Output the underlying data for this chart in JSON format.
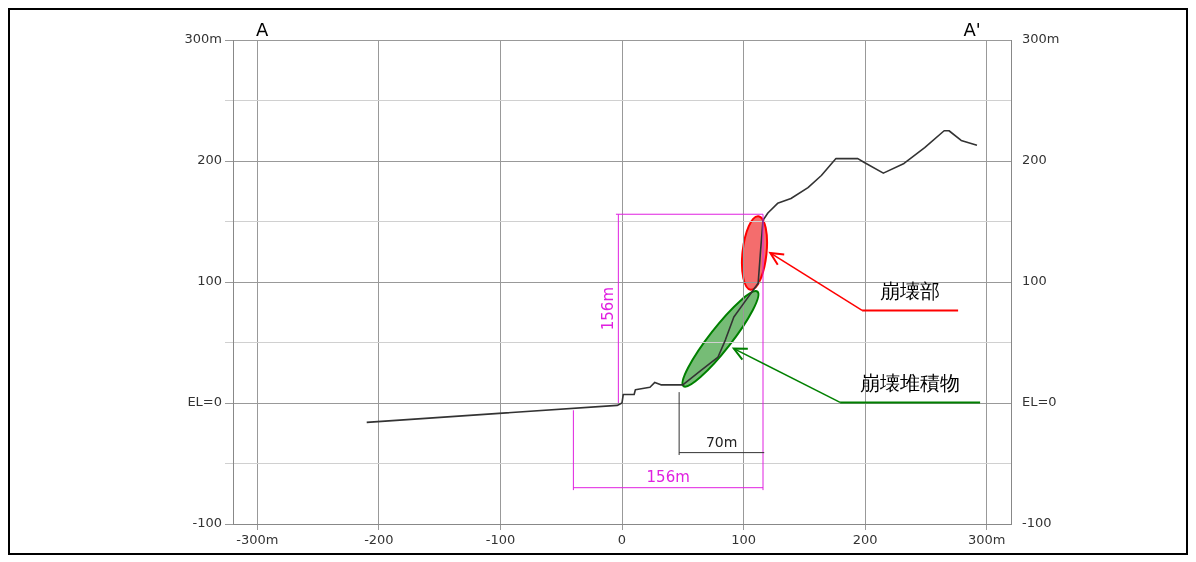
{
  "chart_data": {
    "type": "line",
    "x": [
      -210,
      -4,
      0,
      1,
      10,
      11,
      23,
      27,
      32,
      48,
      50,
      65,
      79,
      85,
      92,
      102,
      112,
      114,
      116,
      120,
      128,
      139,
      153,
      164,
      176,
      194,
      199,
      215,
      232,
      249,
      265,
      269,
      279,
      292
    ],
    "series": [
      {
        "color": "#333333",
        "values": [
          -16,
          -2,
          0,
          7,
          7,
          11,
          13,
          17,
          15,
          15,
          15,
          27,
          38,
          52,
          71,
          85,
          99,
          126,
          151,
          157,
          165,
          169,
          178,
          188,
          202,
          202,
          199,
          190,
          198,
          211,
          225,
          225,
          217,
          213
        ]
      }
    ],
    "xlim": [
      -320,
      320
    ],
    "ylim": [
      -100,
      300
    ],
    "xticks": [
      {
        "value": -300,
        "label": "-300m"
      },
      -200,
      -100,
      0,
      100,
      200,
      {
        "value": 300,
        "label": "300m"
      }
    ],
    "yticks": [
      {
        "value": -100,
        "label": "-100"
      },
      {
        "value": -50,
        "label": null
      },
      {
        "value": 0,
        "label": "EL=0"
      },
      {
        "value": 50,
        "label": null
      },
      100,
      {
        "value": 150,
        "label": null
      },
      200,
      {
        "value": 250,
        "label": null
      },
      {
        "value": 300,
        "label": "300m"
      }
    ],
    "y2lim": [
      -100,
      300
    ],
    "y2ticks": [
      {
        "value": -100,
        "label": "-100"
      },
      {
        "value": -50,
        "label": null
      },
      {
        "value": 0,
        "label": "EL=0"
      },
      {
        "value": 50,
        "label": null
      },
      100,
      {
        "value": 150,
        "label": null
      },
      200,
      {
        "value": 250,
        "label": null
      },
      {
        "value": 300,
        "label": "300m"
      }
    ],
    "grid": true,
    "legend": false,
    "marker": "none",
    "line_style": "solid",
    "annotations": [
      "156m",
      "156m",
      "70m",
      "崩壊部",
      "崩壊堆積物",
      "A",
      "A'"
    ]
  }
}
